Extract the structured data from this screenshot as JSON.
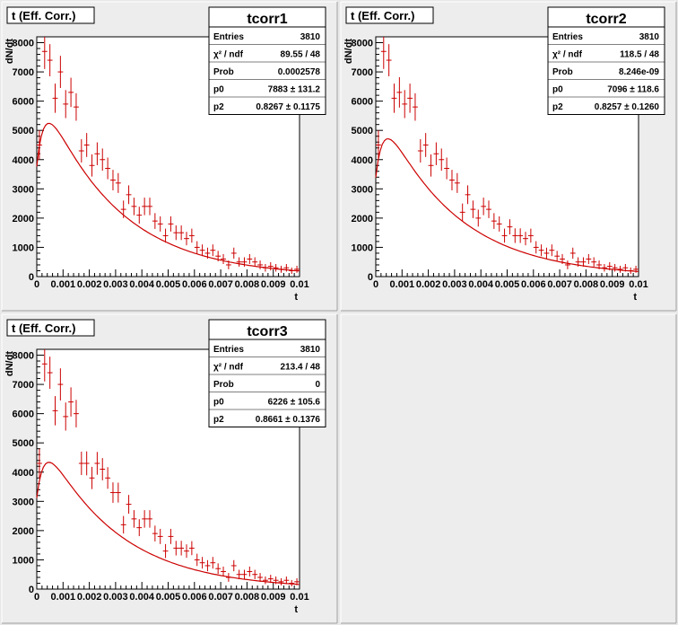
{
  "colors": {
    "data": "#cc0000",
    "fit": "#cc0000",
    "pad_background": "#ededed",
    "frame": "#ffffff"
  },
  "empty_pad": true,
  "chart_data": [
    {
      "type": "scatter",
      "title": "t (Eff. Corr.)",
      "xlabel": "t",
      "ylabel": "dN/dt",
      "xlim": [
        0,
        0.01
      ],
      "ylim": [
        0,
        8200
      ],
      "x_ticks": [
        "0",
        "0.001",
        "0.002",
        "0.003",
        "0.004",
        "0.005",
        "0.006",
        "0.007",
        "0.008",
        "0.009",
        "0.01"
      ],
      "y_ticks": [
        "0",
        "1000",
        "2000",
        "3000",
        "4000",
        "5000",
        "6000",
        "7000",
        "8000"
      ],
      "stats": {
        "name": "tcorr1",
        "rows": [
          {
            "label": "Entries",
            "value": "3810"
          },
          {
            "label": "χ² / ndf",
            "value": "89.55 / 48"
          },
          {
            "label": "Prob",
            "value": "0.0002578"
          },
          {
            "label": "p0",
            "value": "7883 ± 131.2"
          },
          {
            "label": "p2",
            "value": "0.8267 ± 0.1175"
          }
        ]
      },
      "fit": {
        "p0": 7883,
        "p2": 0.8267
      },
      "points": [
        {
          "x": 0.0001,
          "y": 4500,
          "err": 500
        },
        {
          "x": 0.0003,
          "y": 7700,
          "err": 600
        },
        {
          "x": 0.0005,
          "y": 7400,
          "err": 550
        },
        {
          "x": 0.0007,
          "y": 6100,
          "err": 500
        },
        {
          "x": 0.0009,
          "y": 7000,
          "err": 550
        },
        {
          "x": 0.0011,
          "y": 5900,
          "err": 480
        },
        {
          "x": 0.0013,
          "y": 6300,
          "err": 500
        },
        {
          "x": 0.0015,
          "y": 5800,
          "err": 470
        },
        {
          "x": 0.0017,
          "y": 4300,
          "err": 400
        },
        {
          "x": 0.0019,
          "y": 4500,
          "err": 410
        },
        {
          "x": 0.0021,
          "y": 3800,
          "err": 380
        },
        {
          "x": 0.0023,
          "y": 4200,
          "err": 390
        },
        {
          "x": 0.0025,
          "y": 4000,
          "err": 380
        },
        {
          "x": 0.0027,
          "y": 3700,
          "err": 370
        },
        {
          "x": 0.0029,
          "y": 3300,
          "err": 350
        },
        {
          "x": 0.0031,
          "y": 3200,
          "err": 340
        },
        {
          "x": 0.0033,
          "y": 2300,
          "err": 300
        },
        {
          "x": 0.0035,
          "y": 2800,
          "err": 320
        },
        {
          "x": 0.0037,
          "y": 2400,
          "err": 300
        },
        {
          "x": 0.0039,
          "y": 2100,
          "err": 290
        },
        {
          "x": 0.0041,
          "y": 2400,
          "err": 300
        },
        {
          "x": 0.0043,
          "y": 2400,
          "err": 300
        },
        {
          "x": 0.0045,
          "y": 1900,
          "err": 270
        },
        {
          "x": 0.0047,
          "y": 1800,
          "err": 260
        },
        {
          "x": 0.0049,
          "y": 1400,
          "err": 240
        },
        {
          "x": 0.0051,
          "y": 1800,
          "err": 260
        },
        {
          "x": 0.0053,
          "y": 1500,
          "err": 250
        },
        {
          "x": 0.0055,
          "y": 1500,
          "err": 250
        },
        {
          "x": 0.0057,
          "y": 1300,
          "err": 230
        },
        {
          "x": 0.0059,
          "y": 1400,
          "err": 240
        },
        {
          "x": 0.0061,
          "y": 1000,
          "err": 210
        },
        {
          "x": 0.0063,
          "y": 900,
          "err": 200
        },
        {
          "x": 0.0065,
          "y": 800,
          "err": 190
        },
        {
          "x": 0.0067,
          "y": 900,
          "err": 200
        },
        {
          "x": 0.0069,
          "y": 700,
          "err": 180
        },
        {
          "x": 0.0071,
          "y": 600,
          "err": 170
        },
        {
          "x": 0.0073,
          "y": 400,
          "err": 150
        },
        {
          "x": 0.0075,
          "y": 800,
          "err": 190
        },
        {
          "x": 0.0077,
          "y": 500,
          "err": 160
        },
        {
          "x": 0.0079,
          "y": 500,
          "err": 160
        },
        {
          "x": 0.0081,
          "y": 600,
          "err": 170
        },
        {
          "x": 0.0083,
          "y": 500,
          "err": 160
        },
        {
          "x": 0.0085,
          "y": 400,
          "err": 150
        },
        {
          "x": 0.0087,
          "y": 300,
          "err": 130
        },
        {
          "x": 0.0089,
          "y": 350,
          "err": 140
        },
        {
          "x": 0.0091,
          "y": 300,
          "err": 130
        },
        {
          "x": 0.0093,
          "y": 250,
          "err": 120
        },
        {
          "x": 0.0095,
          "y": 300,
          "err": 130
        },
        {
          "x": 0.0097,
          "y": 200,
          "err": 110
        },
        {
          "x": 0.0099,
          "y": 250,
          "err": 120
        }
      ]
    },
    {
      "type": "scatter",
      "title": "t (Eff. Corr.)",
      "xlabel": "t",
      "ylabel": "dN/dt",
      "xlim": [
        0,
        0.01
      ],
      "ylim": [
        0,
        8200
      ],
      "x_ticks": [
        "0",
        "0.001",
        "0.002",
        "0.003",
        "0.004",
        "0.005",
        "0.006",
        "0.007",
        "0.008",
        "0.009",
        "0.01"
      ],
      "y_ticks": [
        "0",
        "1000",
        "2000",
        "3000",
        "4000",
        "5000",
        "6000",
        "7000",
        "8000"
      ],
      "stats": {
        "name": "tcorr2",
        "rows": [
          {
            "label": "Entries",
            "value": "3810"
          },
          {
            "label": "χ² / ndf",
            "value": "118.5 / 48"
          },
          {
            "label": "Prob",
            "value": "8.246e-09"
          },
          {
            "label": "p0",
            "value": "7096 ± 118.6"
          },
          {
            "label": "p2",
            "value": "0.8257 ± 0.1260"
          }
        ]
      },
      "fit": {
        "p0": 7096,
        "p2": 0.8257
      },
      "points": [
        {
          "x": 0.0001,
          "y": 4500,
          "err": 500
        },
        {
          "x": 0.0003,
          "y": 7700,
          "err": 600
        },
        {
          "x": 0.0005,
          "y": 7400,
          "err": 550
        },
        {
          "x": 0.0007,
          "y": 6100,
          "err": 500
        },
        {
          "x": 0.0009,
          "y": 6300,
          "err": 520
        },
        {
          "x": 0.0011,
          "y": 5900,
          "err": 480
        },
        {
          "x": 0.0013,
          "y": 6100,
          "err": 500
        },
        {
          "x": 0.0015,
          "y": 5800,
          "err": 470
        },
        {
          "x": 0.0017,
          "y": 4300,
          "err": 400
        },
        {
          "x": 0.0019,
          "y": 4500,
          "err": 410
        },
        {
          "x": 0.0021,
          "y": 3800,
          "err": 380
        },
        {
          "x": 0.0023,
          "y": 4200,
          "err": 390
        },
        {
          "x": 0.0025,
          "y": 4000,
          "err": 380
        },
        {
          "x": 0.0027,
          "y": 3700,
          "err": 370
        },
        {
          "x": 0.0029,
          "y": 3300,
          "err": 350
        },
        {
          "x": 0.0031,
          "y": 3200,
          "err": 340
        },
        {
          "x": 0.0033,
          "y": 2200,
          "err": 300
        },
        {
          "x": 0.0035,
          "y": 2800,
          "err": 320
        },
        {
          "x": 0.0037,
          "y": 2300,
          "err": 300
        },
        {
          "x": 0.0039,
          "y": 2000,
          "err": 290
        },
        {
          "x": 0.0041,
          "y": 2400,
          "err": 300
        },
        {
          "x": 0.0043,
          "y": 2300,
          "err": 300
        },
        {
          "x": 0.0045,
          "y": 1900,
          "err": 270
        },
        {
          "x": 0.0047,
          "y": 1800,
          "err": 260
        },
        {
          "x": 0.0049,
          "y": 1400,
          "err": 240
        },
        {
          "x": 0.0051,
          "y": 1700,
          "err": 260
        },
        {
          "x": 0.0053,
          "y": 1400,
          "err": 250
        },
        {
          "x": 0.0055,
          "y": 1400,
          "err": 250
        },
        {
          "x": 0.0057,
          "y": 1300,
          "err": 230
        },
        {
          "x": 0.0059,
          "y": 1400,
          "err": 240
        },
        {
          "x": 0.0061,
          "y": 1000,
          "err": 210
        },
        {
          "x": 0.0063,
          "y": 900,
          "err": 200
        },
        {
          "x": 0.0065,
          "y": 800,
          "err": 190
        },
        {
          "x": 0.0067,
          "y": 900,
          "err": 200
        },
        {
          "x": 0.0069,
          "y": 700,
          "err": 180
        },
        {
          "x": 0.0071,
          "y": 600,
          "err": 170
        },
        {
          "x": 0.0073,
          "y": 400,
          "err": 150
        },
        {
          "x": 0.0075,
          "y": 800,
          "err": 190
        },
        {
          "x": 0.0077,
          "y": 500,
          "err": 160
        },
        {
          "x": 0.0079,
          "y": 500,
          "err": 160
        },
        {
          "x": 0.0081,
          "y": 600,
          "err": 170
        },
        {
          "x": 0.0083,
          "y": 500,
          "err": 160
        },
        {
          "x": 0.0085,
          "y": 400,
          "err": 150
        },
        {
          "x": 0.0087,
          "y": 300,
          "err": 130
        },
        {
          "x": 0.0089,
          "y": 350,
          "err": 140
        },
        {
          "x": 0.0091,
          "y": 300,
          "err": 130
        },
        {
          "x": 0.0093,
          "y": 250,
          "err": 120
        },
        {
          "x": 0.0095,
          "y": 300,
          "err": 130
        },
        {
          "x": 0.0097,
          "y": 200,
          "err": 110
        },
        {
          "x": 0.0099,
          "y": 250,
          "err": 120
        }
      ]
    },
    {
      "type": "scatter",
      "title": "t (Eff. Corr.)",
      "xlabel": "t",
      "ylabel": "dN/dt",
      "xlim": [
        0,
        0.01
      ],
      "ylim": [
        0,
        8200
      ],
      "x_ticks": [
        "0",
        "0.001",
        "0.002",
        "0.003",
        "0.004",
        "0.005",
        "0.006",
        "0.007",
        "0.008",
        "0.009",
        "0.01"
      ],
      "y_ticks": [
        "0",
        "1000",
        "2000",
        "3000",
        "4000",
        "5000",
        "6000",
        "7000",
        "8000"
      ],
      "stats": {
        "name": "tcorr3",
        "rows": [
          {
            "label": "Entries",
            "value": "3810"
          },
          {
            "label": "χ² / ndf",
            "value": "213.4 / 48"
          },
          {
            "label": "Prob",
            "value": "0"
          },
          {
            "label": "p0",
            "value": "6226 ± 105.6"
          },
          {
            "label": "p2",
            "value": "0.8661 ± 0.1376"
          }
        ]
      },
      "fit": {
        "p0": 6226,
        "p2": 0.8661
      },
      "points": [
        {
          "x": 0.0001,
          "y": 4300,
          "err": 500
        },
        {
          "x": 0.0003,
          "y": 7700,
          "err": 600
        },
        {
          "x": 0.0005,
          "y": 7400,
          "err": 550
        },
        {
          "x": 0.0007,
          "y": 6100,
          "err": 500
        },
        {
          "x": 0.0009,
          "y": 7000,
          "err": 550
        },
        {
          "x": 0.0011,
          "y": 5900,
          "err": 480
        },
        {
          "x": 0.0013,
          "y": 6400,
          "err": 500
        },
        {
          "x": 0.0015,
          "y": 6000,
          "err": 470
        },
        {
          "x": 0.0017,
          "y": 4300,
          "err": 400
        },
        {
          "x": 0.0019,
          "y": 4300,
          "err": 410
        },
        {
          "x": 0.0021,
          "y": 3800,
          "err": 380
        },
        {
          "x": 0.0023,
          "y": 4300,
          "err": 390
        },
        {
          "x": 0.0025,
          "y": 4100,
          "err": 380
        },
        {
          "x": 0.0027,
          "y": 3800,
          "err": 370
        },
        {
          "x": 0.0029,
          "y": 3300,
          "err": 350
        },
        {
          "x": 0.0031,
          "y": 3300,
          "err": 340
        },
        {
          "x": 0.0033,
          "y": 2200,
          "err": 300
        },
        {
          "x": 0.0035,
          "y": 2900,
          "err": 320
        },
        {
          "x": 0.0037,
          "y": 2400,
          "err": 300
        },
        {
          "x": 0.0039,
          "y": 2100,
          "err": 290
        },
        {
          "x": 0.0041,
          "y": 2400,
          "err": 300
        },
        {
          "x": 0.0043,
          "y": 2400,
          "err": 300
        },
        {
          "x": 0.0045,
          "y": 1900,
          "err": 270
        },
        {
          "x": 0.0047,
          "y": 1800,
          "err": 260
        },
        {
          "x": 0.0049,
          "y": 1300,
          "err": 240
        },
        {
          "x": 0.0051,
          "y": 1800,
          "err": 260
        },
        {
          "x": 0.0053,
          "y": 1400,
          "err": 250
        },
        {
          "x": 0.0055,
          "y": 1400,
          "err": 250
        },
        {
          "x": 0.0057,
          "y": 1300,
          "err": 230
        },
        {
          "x": 0.0059,
          "y": 1400,
          "err": 240
        },
        {
          "x": 0.0061,
          "y": 1000,
          "err": 210
        },
        {
          "x": 0.0063,
          "y": 900,
          "err": 200
        },
        {
          "x": 0.0065,
          "y": 800,
          "err": 190
        },
        {
          "x": 0.0067,
          "y": 900,
          "err": 200
        },
        {
          "x": 0.0069,
          "y": 700,
          "err": 180
        },
        {
          "x": 0.0071,
          "y": 600,
          "err": 170
        },
        {
          "x": 0.0073,
          "y": 400,
          "err": 150
        },
        {
          "x": 0.0075,
          "y": 800,
          "err": 190
        },
        {
          "x": 0.0077,
          "y": 500,
          "err": 160
        },
        {
          "x": 0.0079,
          "y": 500,
          "err": 160
        },
        {
          "x": 0.0081,
          "y": 600,
          "err": 170
        },
        {
          "x": 0.0083,
          "y": 500,
          "err": 160
        },
        {
          "x": 0.0085,
          "y": 400,
          "err": 150
        },
        {
          "x": 0.0087,
          "y": 300,
          "err": 130
        },
        {
          "x": 0.0089,
          "y": 350,
          "err": 140
        },
        {
          "x": 0.0091,
          "y": 300,
          "err": 130
        },
        {
          "x": 0.0093,
          "y": 250,
          "err": 120
        },
        {
          "x": 0.0095,
          "y": 300,
          "err": 130
        },
        {
          "x": 0.0097,
          "y": 200,
          "err": 110
        },
        {
          "x": 0.0099,
          "y": 250,
          "err": 120
        }
      ]
    }
  ]
}
